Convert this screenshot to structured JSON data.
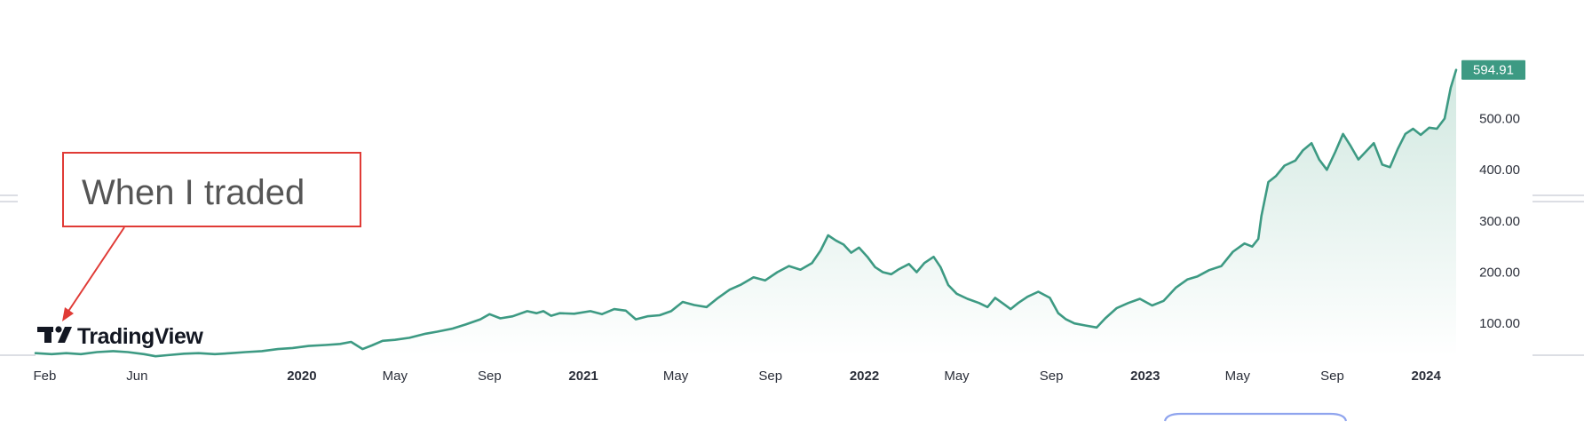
{
  "logo": {
    "text": "TradingView",
    "icon": "tradingview-logo-icon"
  },
  "annotation": {
    "text": "When I traded",
    "color": "#e03b36"
  },
  "colors": {
    "line": "#3d9a83",
    "fill_top": "#cfe7df",
    "fill_bottom": "#ffffff",
    "badge": "#3d9a83",
    "text": "#2a2e39"
  },
  "chart_data": {
    "type": "area",
    "title": "",
    "xlabel": "",
    "ylabel": "",
    "last_price_label": "594.91",
    "ylim": [
      38,
      662
    ],
    "y_ticks": [
      "100.00",
      "200.00",
      "300.00",
      "400.00",
      "500.00"
    ],
    "x_ticks": [
      {
        "label": "Feb",
        "date": "2019-02-01",
        "bold": false
      },
      {
        "label": "Jun",
        "date": "2019-06-01",
        "bold": false
      },
      {
        "label": "2020",
        "date": "2020-01-01",
        "bold": true
      },
      {
        "label": "May",
        "date": "2020-05-01",
        "bold": false
      },
      {
        "label": "Sep",
        "date": "2020-09-01",
        "bold": false
      },
      {
        "label": "2021",
        "date": "2021-01-01",
        "bold": true
      },
      {
        "label": "May",
        "date": "2021-05-01",
        "bold": false
      },
      {
        "label": "Sep",
        "date": "2021-09-01",
        "bold": false
      },
      {
        "label": "2022",
        "date": "2022-01-01",
        "bold": true
      },
      {
        "label": "May",
        "date": "2022-05-01",
        "bold": false
      },
      {
        "label": "Sep",
        "date": "2022-09-01",
        "bold": false
      },
      {
        "label": "2023",
        "date": "2023-01-01",
        "bold": true
      },
      {
        "label": "May",
        "date": "2023-05-01",
        "bold": false
      },
      {
        "label": "Sep",
        "date": "2023-09-01",
        "bold": false
      },
      {
        "label": "2024",
        "date": "2024-01-01",
        "bold": true
      }
    ],
    "series": [
      {
        "points": [
          [
            "2019-01-20",
            42
          ],
          [
            "2019-02-10",
            40
          ],
          [
            "2019-03-01",
            42
          ],
          [
            "2019-03-20",
            40
          ],
          [
            "2019-04-10",
            44
          ],
          [
            "2019-05-01",
            46
          ],
          [
            "2019-05-20",
            44
          ],
          [
            "2019-06-10",
            40
          ],
          [
            "2019-06-25",
            36
          ],
          [
            "2019-07-10",
            38
          ],
          [
            "2019-08-01",
            41
          ],
          [
            "2019-08-20",
            42
          ],
          [
            "2019-09-10",
            40
          ],
          [
            "2019-10-01",
            42
          ],
          [
            "2019-10-20",
            44
          ],
          [
            "2019-11-10",
            46
          ],
          [
            "2019-12-01",
            50
          ],
          [
            "2019-12-20",
            52
          ],
          [
            "2020-01-10",
            56
          ],
          [
            "2020-02-01",
            58
          ],
          [
            "2020-02-20",
            60
          ],
          [
            "2020-03-05",
            64
          ],
          [
            "2020-03-20",
            50
          ],
          [
            "2020-04-01",
            57
          ],
          [
            "2020-04-15",
            66
          ],
          [
            "2020-05-01",
            68
          ],
          [
            "2020-05-20",
            72
          ],
          [
            "2020-06-10",
            80
          ],
          [
            "2020-06-25",
            84
          ],
          [
            "2020-07-15",
            90
          ],
          [
            "2020-08-01",
            98
          ],
          [
            "2020-08-20",
            108
          ],
          [
            "2020-09-01",
            118
          ],
          [
            "2020-09-15",
            110
          ],
          [
            "2020-10-01",
            114
          ],
          [
            "2020-10-20",
            124
          ],
          [
            "2020-11-01",
            120
          ],
          [
            "2020-11-10",
            124
          ],
          [
            "2020-11-20",
            115
          ],
          [
            "2020-12-01",
            120
          ],
          [
            "2020-12-20",
            119
          ],
          [
            "2021-01-10",
            124
          ],
          [
            "2021-01-25",
            118
          ],
          [
            "2021-02-10",
            128
          ],
          [
            "2021-02-25",
            125
          ],
          [
            "2021-03-10",
            108
          ],
          [
            "2021-03-25",
            114
          ],
          [
            "2021-04-10",
            116
          ],
          [
            "2021-04-25",
            124
          ],
          [
            "2021-05-10",
            142
          ],
          [
            "2021-05-25",
            136
          ],
          [
            "2021-06-10",
            132
          ],
          [
            "2021-06-25",
            150
          ],
          [
            "2021-07-10",
            166
          ],
          [
            "2021-07-25",
            176
          ],
          [
            "2021-08-10",
            190
          ],
          [
            "2021-08-25",
            184
          ],
          [
            "2021-09-10",
            200
          ],
          [
            "2021-09-25",
            212
          ],
          [
            "2021-10-10",
            205
          ],
          [
            "2021-10-25",
            218
          ],
          [
            "2021-11-05",
            242
          ],
          [
            "2021-11-15",
            272
          ],
          [
            "2021-11-25",
            262
          ],
          [
            "2021-12-05",
            254
          ],
          [
            "2021-12-15",
            238
          ],
          [
            "2021-12-25",
            248
          ],
          [
            "2022-01-05",
            230
          ],
          [
            "2022-01-15",
            210
          ],
          [
            "2022-01-25",
            200
          ],
          [
            "2022-02-05",
            196
          ],
          [
            "2022-02-15",
            206
          ],
          [
            "2022-02-28",
            216
          ],
          [
            "2022-03-10",
            200
          ],
          [
            "2022-03-20",
            218
          ],
          [
            "2022-04-01",
            230
          ],
          [
            "2022-04-10",
            210
          ],
          [
            "2022-04-20",
            175
          ],
          [
            "2022-05-01",
            158
          ],
          [
            "2022-05-15",
            148
          ],
          [
            "2022-05-30",
            140
          ],
          [
            "2022-06-10",
            132
          ],
          [
            "2022-06-20",
            150
          ],
          [
            "2022-07-01",
            138
          ],
          [
            "2022-07-10",
            128
          ],
          [
            "2022-07-20",
            140
          ],
          [
            "2022-08-01",
            152
          ],
          [
            "2022-08-15",
            162
          ],
          [
            "2022-08-30",
            150
          ],
          [
            "2022-09-10",
            120
          ],
          [
            "2022-09-20",
            108
          ],
          [
            "2022-10-01",
            100
          ],
          [
            "2022-10-15",
            96
          ],
          [
            "2022-10-30",
            92
          ],
          [
            "2022-11-10",
            110
          ],
          [
            "2022-11-25",
            130
          ],
          [
            "2022-12-10",
            140
          ],
          [
            "2022-12-25",
            148
          ],
          [
            "2023-01-10",
            135
          ],
          [
            "2023-01-25",
            144
          ],
          [
            "2023-02-10",
            170
          ],
          [
            "2023-02-25",
            186
          ],
          [
            "2023-03-10",
            192
          ],
          [
            "2023-03-25",
            204
          ],
          [
            "2023-04-10",
            212
          ],
          [
            "2023-04-25",
            240
          ],
          [
            "2023-05-10",
            256
          ],
          [
            "2023-05-20",
            250
          ],
          [
            "2023-05-28",
            265
          ],
          [
            "2023-06-01",
            310
          ],
          [
            "2023-06-10",
            376
          ],
          [
            "2023-06-20",
            388
          ],
          [
            "2023-07-01",
            408
          ],
          [
            "2023-07-15",
            418
          ],
          [
            "2023-07-25",
            438
          ],
          [
            "2023-08-05",
            452
          ],
          [
            "2023-08-15",
            420
          ],
          [
            "2023-08-25",
            400
          ],
          [
            "2023-09-05",
            435
          ],
          [
            "2023-09-15",
            470
          ],
          [
            "2023-09-25",
            446
          ],
          [
            "2023-10-05",
            420
          ],
          [
            "2023-10-15",
            436
          ],
          [
            "2023-10-25",
            452
          ],
          [
            "2023-11-05",
            410
          ],
          [
            "2023-11-15",
            405
          ],
          [
            "2023-11-25",
            440
          ],
          [
            "2023-12-05",
            470
          ],
          [
            "2023-12-15",
            480
          ],
          [
            "2023-12-25",
            468
          ],
          [
            "2024-01-05",
            482
          ],
          [
            "2024-01-15",
            480
          ],
          [
            "2024-01-25",
            500
          ],
          [
            "2024-02-02",
            560
          ],
          [
            "2024-02-09",
            594.91
          ]
        ]
      }
    ]
  }
}
